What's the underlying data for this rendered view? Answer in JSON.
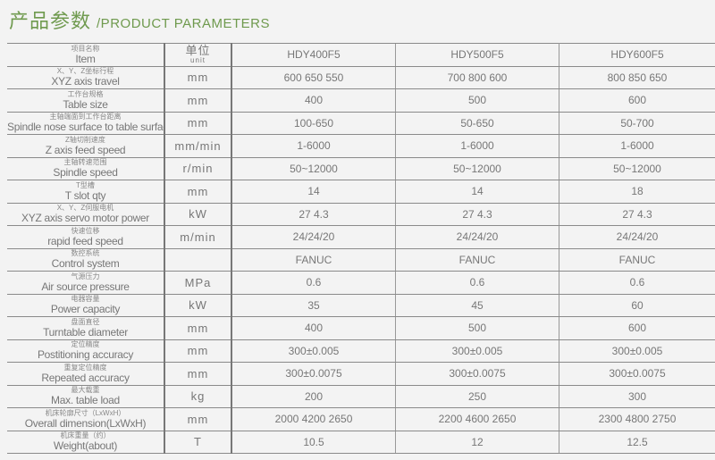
{
  "title": {
    "cn": "产品参数",
    "en": "/PRODUCT  PARAMETERS"
  },
  "colors": {
    "title": "#6f9a4e",
    "background": "#f3f3f3",
    "grid": "#8a8a8a"
  },
  "header": {
    "item_cn": "项目名称",
    "item_en": "Item",
    "unit_cn": "单位",
    "unit_en": "unit",
    "models": [
      "HDY400F5",
      "HDY500F5",
      "HDY600F5"
    ]
  },
  "rows": [
    {
      "cn": "X、Y、Z坐标行程",
      "en": "XYZ axis travel",
      "unit": "mm",
      "values": [
        "600  650  550",
        "700  800  600",
        "800  850  650"
      ]
    },
    {
      "cn": "工作台规格",
      "en": "Table size",
      "unit": "mm",
      "values": [
        "400",
        "500",
        "600"
      ]
    },
    {
      "cn": "主轴端面到工作台距离",
      "en": "Spindle nose surface to table surface",
      "unit": "mm",
      "values": [
        "100-650",
        "50-650",
        "50-700"
      ]
    },
    {
      "cn": "Z轴切削速度",
      "en": "Z axis feed speed",
      "unit": "mm/min",
      "values": [
        "1-6000",
        "1-6000",
        "1-6000"
      ]
    },
    {
      "cn": "主轴转速范围",
      "en": "Spindle speed",
      "unit": "r/min",
      "values": [
        "50~12000",
        "50~12000",
        "50~12000"
      ]
    },
    {
      "cn": "T型槽",
      "en": "T slot qty",
      "unit": "mm",
      "values": [
        "14",
        "14",
        "18"
      ]
    },
    {
      "cn": "X、Y、Z伺服电机",
      "en": "XYZ axis servo motor power",
      "unit": "kW",
      "values": [
        "27    4.3",
        "27    4.3",
        "27    4.3"
      ]
    },
    {
      "cn": "快速位移",
      "en": "rapid feed speed",
      "unit": "m/min",
      "values": [
        "24/24/20",
        "24/24/20",
        "24/24/20"
      ]
    },
    {
      "cn": "数控系统",
      "en": "Control system",
      "unit": "",
      "values": [
        "FANUC",
        "FANUC",
        "FANUC"
      ]
    },
    {
      "cn": "气源压力",
      "en": "Air source pressure",
      "unit": "MPa",
      "values": [
        "0.6",
        "0.6",
        "0.6"
      ]
    },
    {
      "cn": "电器容量",
      "en": "Power capacity",
      "unit": "kW",
      "values": [
        "35",
        "45",
        "60"
      ]
    },
    {
      "cn": "盘面直径",
      "en": "Turntable diameter",
      "unit": "mm",
      "values": [
        "400",
        "500",
        "600"
      ]
    },
    {
      "cn": "定位精度",
      "en": "Postitioning accuracy",
      "unit": "mm",
      "values": [
        "300±0.005",
        "300±0.005",
        "300±0.005"
      ]
    },
    {
      "cn": "重复定位精度",
      "en": "Repeated accuracy",
      "unit": "mm",
      "values": [
        "300±0.0075",
        "300±0.0075",
        "300±0.0075"
      ]
    },
    {
      "cn": "最大载重",
      "en": "Max. table load",
      "unit": "kg",
      "values": [
        "200",
        "250",
        "300"
      ]
    },
    {
      "cn": "机床轮廓尺寸（LxWxH）",
      "en": "Overall dimension(LxWxH)",
      "unit": "mm",
      "values": [
        "2000  4200  2650",
        "2200  4600  2650",
        "2300  4800  2750"
      ]
    },
    {
      "cn": "机床重量（约）",
      "en": "Weight(about)",
      "unit": "T",
      "values": [
        "10.5",
        "12",
        "12.5"
      ]
    }
  ]
}
